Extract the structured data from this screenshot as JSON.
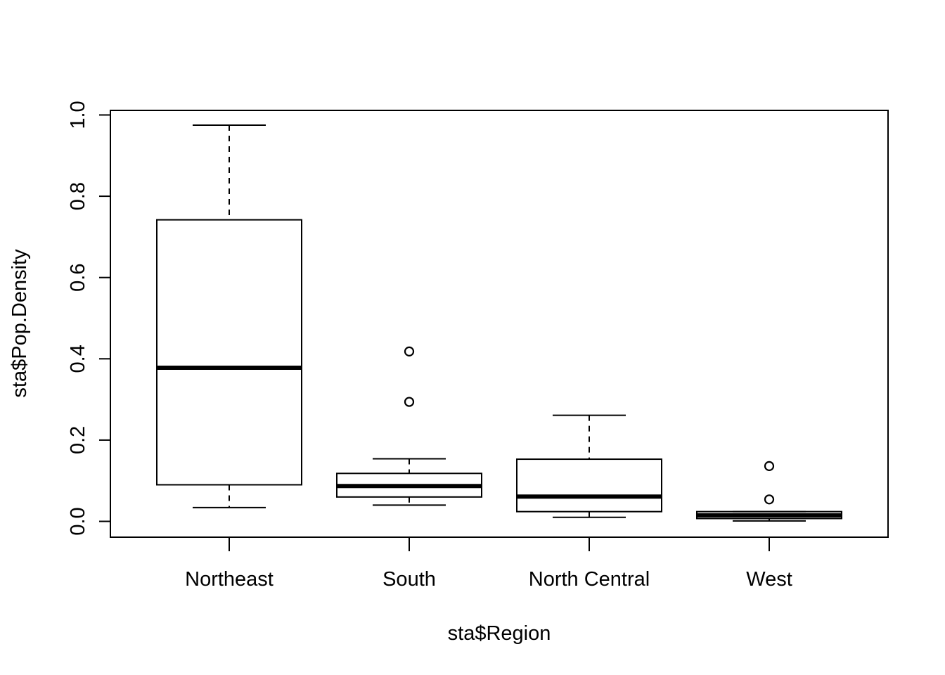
{
  "chart_data": {
    "type": "boxplot",
    "xlabel": "sta$Region",
    "ylabel": "sta$Pop.Density",
    "ylim": [
      -0.04,
      1.01
    ],
    "yticks": [
      0.0,
      0.2,
      0.4,
      0.6,
      0.8,
      1.0
    ],
    "ytick_labels": [
      "0.0",
      "0.2",
      "0.4",
      "0.6",
      "0.8",
      "1.0"
    ],
    "categories": [
      "Northeast",
      "South",
      "North Central",
      "West"
    ],
    "boxes": [
      {
        "category": "Northeast",
        "whisker_low": 0.034,
        "q1": 0.09,
        "median": 0.378,
        "q3": 0.742,
        "whisker_high": 0.975,
        "outliers": []
      },
      {
        "category": "South",
        "whisker_low": 0.04,
        "q1": 0.06,
        "median": 0.087,
        "q3": 0.118,
        "whisker_high": 0.154,
        "outliers": [
          0.294,
          0.418
        ]
      },
      {
        "category": "North Central",
        "whisker_low": 0.01,
        "q1": 0.024,
        "median": 0.061,
        "q3": 0.153,
        "whisker_high": 0.261,
        "outliers": []
      },
      {
        "category": "West",
        "whisker_low": 0.001,
        "q1": 0.007,
        "median": 0.015,
        "q3": 0.024,
        "whisker_high": 0.024,
        "outliers": [
          0.054,
          0.136
        ]
      }
    ],
    "colors": {
      "stroke": "#000000",
      "background": "#ffffff"
    },
    "grid": false,
    "legend": "none"
  }
}
